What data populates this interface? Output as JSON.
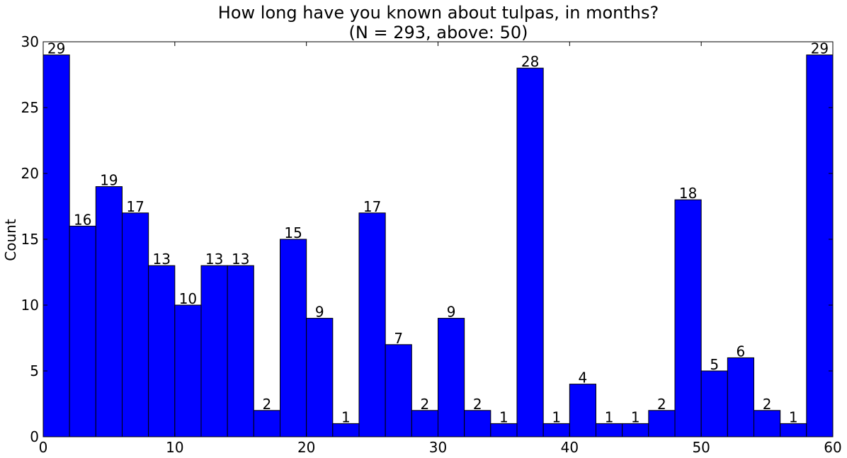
{
  "chart_data": {
    "type": "bar",
    "title": "How long have you known about tulpas, in months?",
    "subtitle": "(N = 293, above: 50)",
    "xlabel": "",
    "ylabel": "Count",
    "xlim": [
      0,
      60
    ],
    "ylim": [
      0,
      30
    ],
    "bin_width": 2,
    "x_ticks": [
      0,
      10,
      20,
      30,
      40,
      50,
      60
    ],
    "y_ticks": [
      0,
      5,
      10,
      15,
      20,
      25,
      30
    ],
    "bins": [
      0,
      2,
      4,
      6,
      8,
      10,
      12,
      14,
      16,
      18,
      20,
      22,
      24,
      26,
      28,
      30,
      32,
      34,
      36,
      38,
      40,
      42,
      44,
      46,
      48,
      50,
      52,
      54,
      56,
      58
    ],
    "values": [
      29,
      16,
      19,
      17,
      13,
      10,
      13,
      13,
      2,
      15,
      9,
      1,
      17,
      7,
      2,
      9,
      2,
      1,
      28,
      1,
      4,
      1,
      1,
      2,
      18,
      5,
      6,
      2,
      1,
      29
    ],
    "bar_color": "#0000ff",
    "edge_color": "#000000",
    "grid": false
  }
}
